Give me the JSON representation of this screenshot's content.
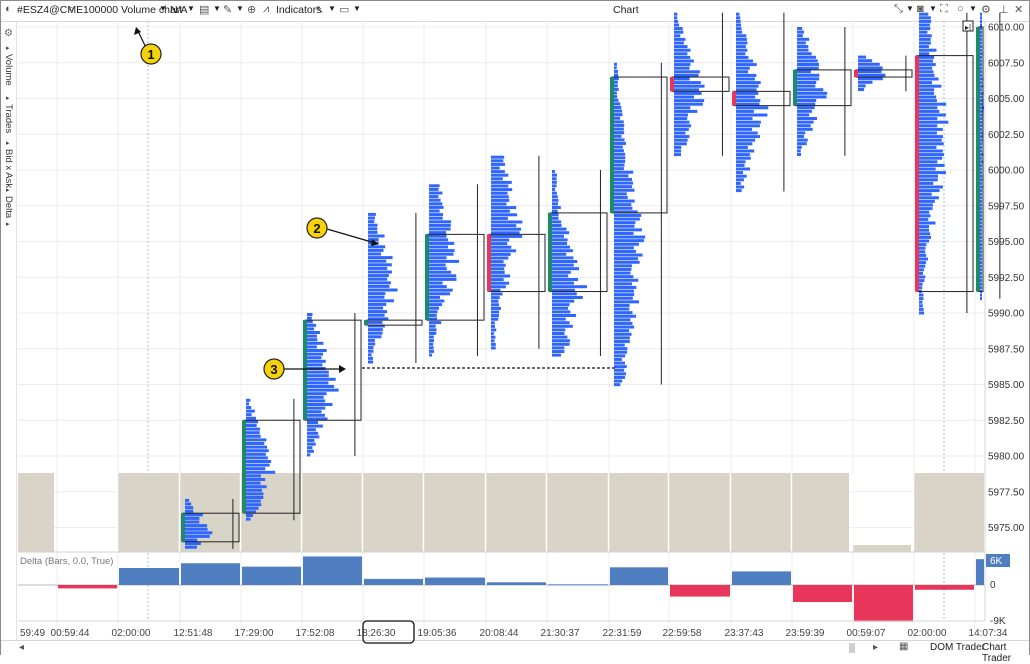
{
  "toolbar": {
    "symbol": "#ESZ4@CME",
    "chart_type": "100000 Volume chart",
    "session": "N/A",
    "indicators_label": "Indicators",
    "window_title": "Chart"
  },
  "left_panel": {
    "items": [
      "Volume",
      "Trades",
      "Bid x Ask",
      "Delta"
    ]
  },
  "price_axis": {
    "labels": [
      "6010.00",
      "6007.50",
      "6005.00",
      "6002.50",
      "6000.00",
      "5997.50",
      "5995.00",
      "5992.50",
      "5990.00",
      "5987.50",
      "5985.00",
      "5982.50",
      "5980.00",
      "5977.50",
      "5975.00"
    ]
  },
  "delta_panel": {
    "title": "Delta (Bars, 0.0, True)",
    "top_badge": "6K",
    "zero_label": "0",
    "bottom_label": "-9K"
  },
  "time_axis": {
    "labels": [
      "59:49",
      "00:59:44",
      "02:00:00",
      "12:51:48",
      "17:29:00",
      "17:52:08",
      "18:26:30",
      "19:05:36",
      "20:08:44",
      "21:30:37",
      "22:31:59",
      "22:59:58",
      "23:37:43",
      "23:59:39",
      "00:59:07",
      "02:00:00",
      "14:07:34"
    ]
  },
  "bottom_bar": {
    "dom_trader": "DOM Trader",
    "chart_trader": "Chart Trader"
  },
  "callouts": [
    "1",
    "2",
    "3"
  ],
  "colors": {
    "profile": "#2f66ff",
    "bull": "#1e8a6a",
    "bear": "#e8365a",
    "delta_pos": "#4f7fc0",
    "delta_neg": "#e8365a",
    "volume_bg": "#d8d4c8",
    "callout": "#f5d20a"
  },
  "chart_data": [
    {
      "type": "volume-profile-candles",
      "ylim": [
        5973.5,
        6011.0
      ],
      "candles": [
        {
          "time": "12:51:48",
          "open": 5974.0,
          "high": 5977.0,
          "low": 5973.5,
          "close": 5976.0,
          "direction": "up"
        },
        {
          "time": "17:29:00",
          "open": 5976.0,
          "high": 5984.0,
          "low": 5975.5,
          "close": 5982.5,
          "direction": "up"
        },
        {
          "time": "17:52:08",
          "open": 5982.5,
          "high": 5990.0,
          "low": 5980.0,
          "close": 5989.5,
          "direction": "up"
        },
        {
          "time": "18:26:30",
          "open": 5989.5,
          "high": 5997.0,
          "low": 5986.5,
          "close": 5989.5,
          "direction": "up"
        },
        {
          "time": "19:05:36",
          "open": 5989.5,
          "high": 5999.0,
          "low": 5987.0,
          "close": 5995.5,
          "direction": "up"
        },
        {
          "time": "20:08:44",
          "open": 5995.5,
          "high": 6001.0,
          "low": 5987.5,
          "close": 5991.5,
          "direction": "down"
        },
        {
          "time": "21:30:37",
          "open": 5991.5,
          "high": 6000.0,
          "low": 5987.0,
          "close": 5997.0,
          "direction": "up"
        },
        {
          "time": "22:31:59",
          "open": 5997.0,
          "high": 6007.5,
          "low": 5985.0,
          "close": 6006.5,
          "direction": "up"
        },
        {
          "time": "22:59:58",
          "open": 6006.5,
          "high": 6011.0,
          "low": 6001.0,
          "close": 6005.5,
          "direction": "down"
        },
        {
          "time": "23:37:43",
          "open": 6005.5,
          "high": 6011.0,
          "low": 5998.5,
          "close": 6004.5,
          "direction": "down"
        },
        {
          "time": "23:59:39",
          "open": 6004.5,
          "high": 6010.0,
          "low": 6001.0,
          "close": 6007.0,
          "direction": "up"
        },
        {
          "time": "00:59:07",
          "open": 6007.0,
          "high": 6008.0,
          "low": 6005.5,
          "close": 6006.5,
          "direction": "down"
        },
        {
          "time": "02:00:00",
          "open": 6008.0,
          "high": 6011.0,
          "low": 5990.0,
          "close": 5991.5,
          "direction": "down"
        },
        {
          "time": "14:07:34",
          "open": 5991.5,
          "high": 6011.0,
          "low": 5991.0,
          "close": 6010.0,
          "direction": "up"
        }
      ]
    },
    {
      "type": "bar",
      "name": "Delta",
      "ylim": [
        -9000,
        6000
      ],
      "categories": [
        "00:59:44",
        "02:00:00",
        "12:51:48",
        "17:29:00",
        "17:52:08",
        "18:26:30",
        "19:05:36",
        "20:08:44",
        "21:30:37",
        "22:31:59",
        "22:59:58",
        "23:37:43",
        "23:59:39",
        "00:59:07",
        "02:00:00",
        "14:07:34"
      ],
      "values": [
        -500,
        2500,
        3200,
        2700,
        4200,
        900,
        1100,
        400,
        100,
        2600,
        -1700,
        2000,
        -2500,
        -5400,
        -700,
        3800
      ]
    }
  ]
}
